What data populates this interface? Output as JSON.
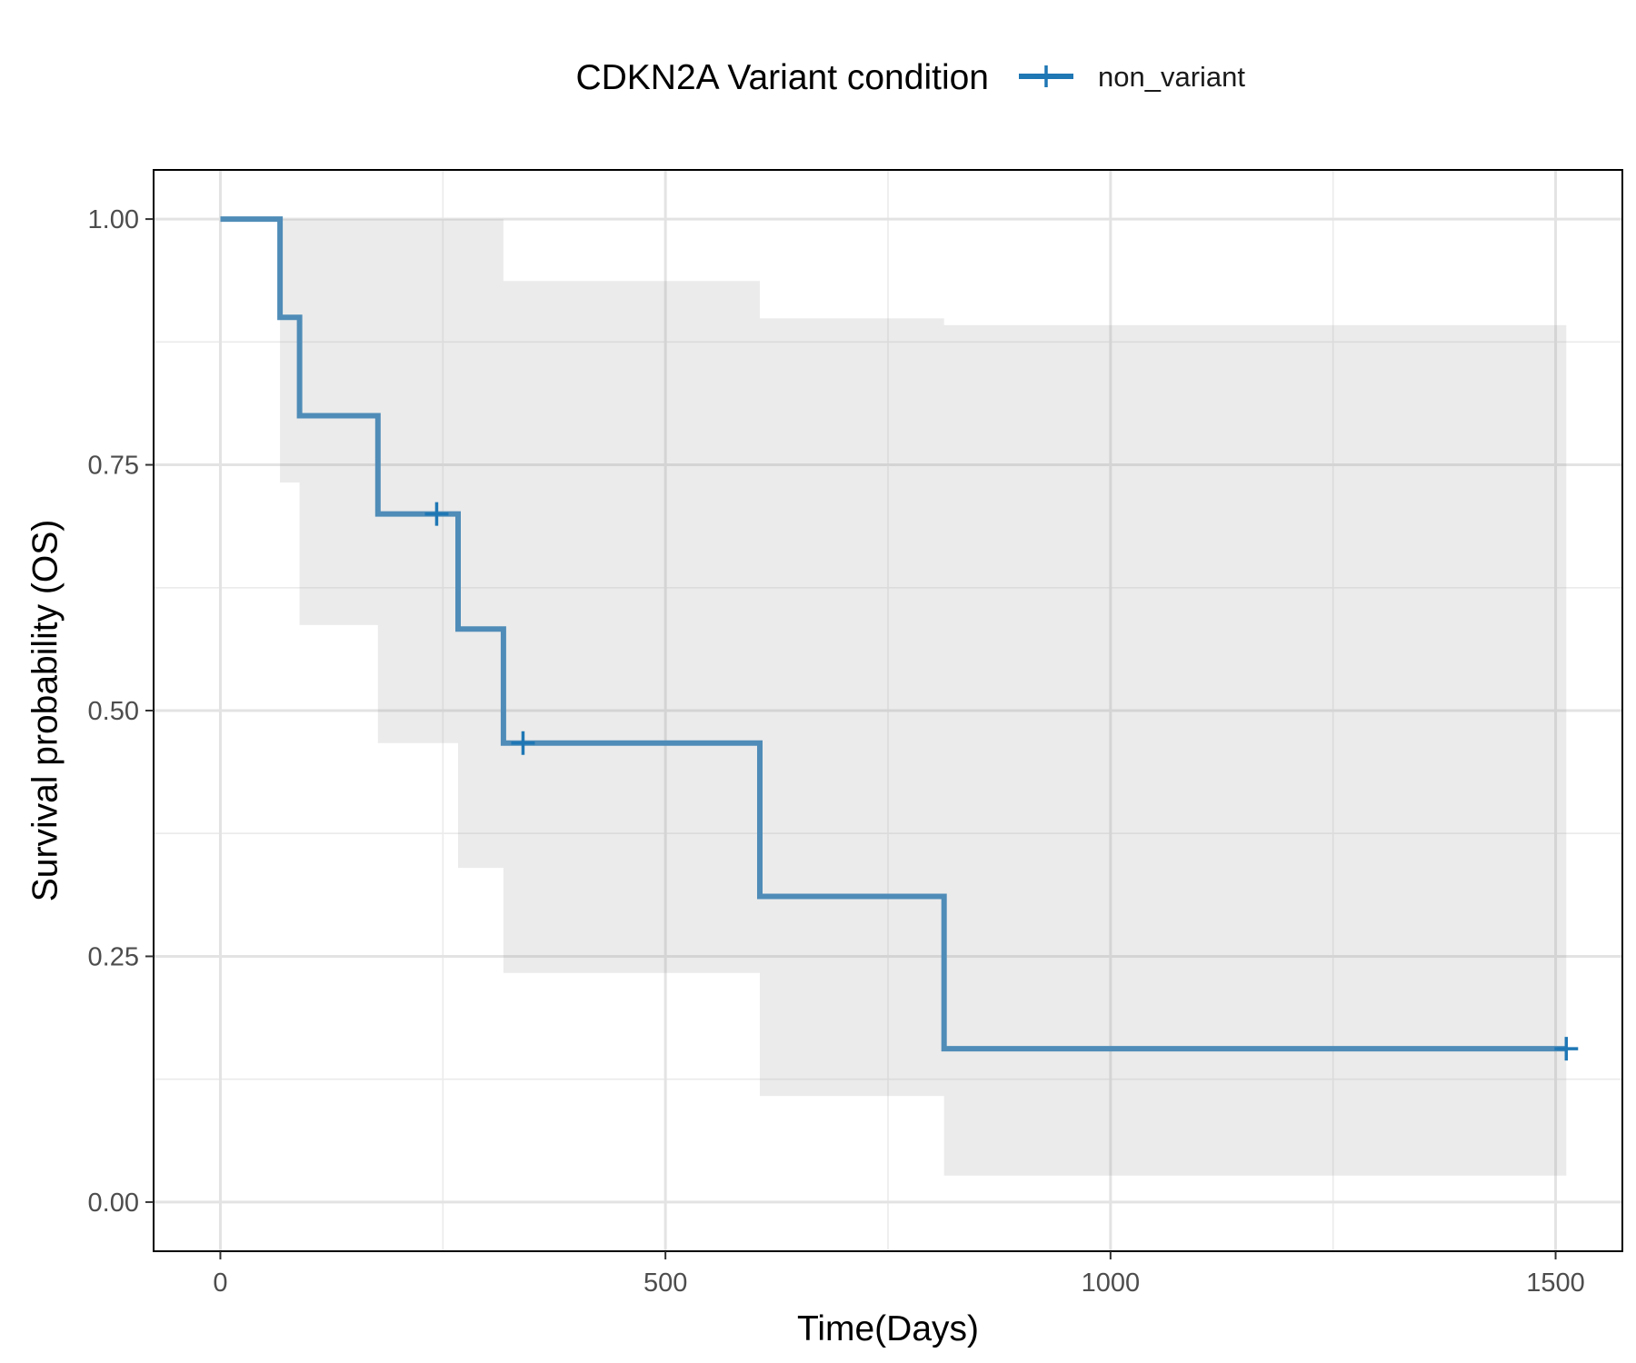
{
  "chart_data": {
    "type": "line",
    "subtype": "kaplan-meier step plot with confidence band",
    "title": "",
    "xlabel": "Time(Days)",
    "ylabel": "Survival probability (OS)",
    "xlim": [
      -75,
      1575
    ],
    "ylim": [
      -0.05,
      1.05
    ],
    "x_ticks": [
      0,
      500,
      1000,
      1500
    ],
    "x_tick_labels": [
      "0",
      "500",
      "1000",
      "1500"
    ],
    "y_ticks": [
      0,
      0.25,
      0.5,
      0.75,
      1.0
    ],
    "y_tick_labels": [
      "0.00",
      "0.25",
      "0.50",
      "0.75",
      "1.00"
    ],
    "grid": true,
    "legend": {
      "position": "top",
      "title": "CDKN2A Variant condition",
      "entries": [
        "non_variant"
      ]
    },
    "series": [
      {
        "name": "non_variant",
        "color": "#1f77b4",
        "line_color": "#4f8cb8",
        "steps": [
          {
            "x": 0,
            "y": 1.0,
            "lower": 1.0,
            "upper": 1.0
          },
          {
            "x": 67,
            "y": 0.9,
            "lower": 0.732,
            "upper": 1.0
          },
          {
            "x": 89,
            "y": 0.8,
            "lower": 0.587,
            "upper": 1.0
          },
          {
            "x": 177,
            "y": 0.7,
            "lower": 0.467,
            "upper": 1.0
          },
          {
            "x": 267,
            "y": 0.583,
            "lower": 0.34,
            "upper": 1.0
          },
          {
            "x": 318,
            "y": 0.467,
            "lower": 0.233,
            "upper": 0.937
          },
          {
            "x": 606,
            "y": 0.311,
            "lower": 0.108,
            "upper": 0.899
          },
          {
            "x": 813,
            "y": 0.156,
            "lower": 0.027,
            "upper": 0.892
          }
        ],
        "end_x": 1512,
        "censored": [
          {
            "x": 243,
            "y": 0.7
          },
          {
            "x": 340,
            "y": 0.467
          },
          {
            "x": 1512,
            "y": 0.156
          }
        ]
      }
    ]
  }
}
